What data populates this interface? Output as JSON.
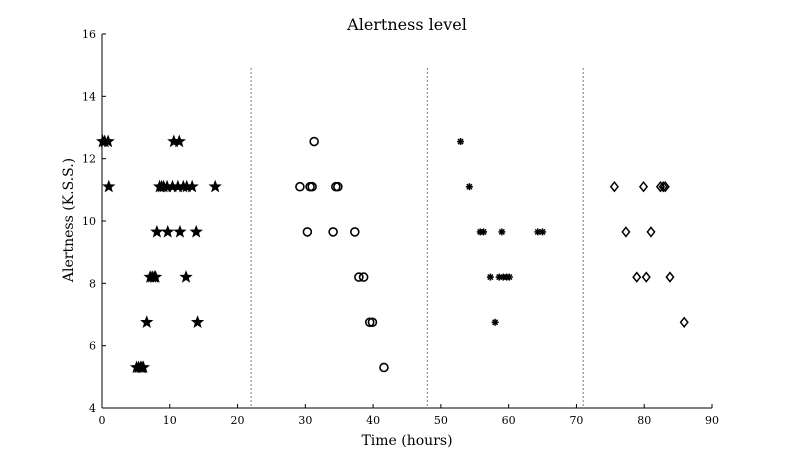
{
  "chart_data": {
    "type": "scatter",
    "title": "Alertness level",
    "xlabel": "Time (hours)",
    "ylabel": "Alertness (K.S.S.)",
    "xlim": [
      0,
      90
    ],
    "ylim": [
      4,
      16
    ],
    "xticks": [
      0,
      10,
      20,
      30,
      40,
      50,
      60,
      70,
      80,
      90
    ],
    "yticks": [
      4,
      6,
      8,
      10,
      12,
      14,
      16
    ],
    "grid": false,
    "vlines": [
      22,
      48,
      71
    ],
    "series": [
      {
        "marker": "star",
        "points": [
          [
            0.1,
            12.55
          ],
          [
            0.4,
            12.55
          ],
          [
            0.9,
            12.55
          ],
          [
            1.0,
            11.1
          ],
          [
            5.1,
            5.3
          ],
          [
            5.4,
            5.3
          ],
          [
            5.7,
            5.3
          ],
          [
            5.9,
            5.3
          ],
          [
            6.1,
            5.3
          ],
          [
            6.6,
            6.75
          ],
          [
            7.1,
            8.2
          ],
          [
            7.4,
            8.2
          ],
          [
            7.7,
            8.2
          ],
          [
            7.9,
            8.2
          ],
          [
            8.1,
            9.65
          ],
          [
            8.5,
            11.1
          ],
          [
            8.8,
            11.1
          ],
          [
            9.1,
            11.1
          ],
          [
            9.6,
            11.1
          ],
          [
            9.7,
            9.65
          ],
          [
            10.4,
            11.1
          ],
          [
            10.6,
            12.55
          ],
          [
            11.2,
            11.1
          ],
          [
            11.4,
            12.55
          ],
          [
            11.5,
            9.65
          ],
          [
            12.0,
            11.1
          ],
          [
            12.4,
            8.2
          ],
          [
            12.5,
            11.1
          ],
          [
            13.3,
            11.1
          ],
          [
            13.9,
            9.65
          ],
          [
            14.1,
            6.75
          ],
          [
            16.7,
            11.1
          ]
        ]
      },
      {
        "marker": "circle",
        "points": [
          [
            29.2,
            11.1
          ],
          [
            30.3,
            9.65
          ],
          [
            30.7,
            11.1
          ],
          [
            31.0,
            11.1
          ],
          [
            31.3,
            12.55
          ],
          [
            34.1,
            9.65
          ],
          [
            34.5,
            11.1
          ],
          [
            34.8,
            11.1
          ],
          [
            37.3,
            9.65
          ],
          [
            37.9,
            8.2
          ],
          [
            38.6,
            8.2
          ],
          [
            39.5,
            6.75
          ],
          [
            39.9,
            6.75
          ],
          [
            41.6,
            5.3
          ]
        ]
      },
      {
        "marker": "asterisk",
        "points": [
          [
            52.9,
            12.55
          ],
          [
            54.2,
            11.1
          ],
          [
            55.8,
            9.65
          ],
          [
            56.3,
            9.65
          ],
          [
            57.3,
            8.2
          ],
          [
            58.0,
            6.75
          ],
          [
            58.6,
            8.2
          ],
          [
            59.0,
            9.65
          ],
          [
            59.2,
            8.2
          ],
          [
            59.7,
            8.2
          ],
          [
            60.1,
            8.2
          ],
          [
            64.3,
            9.65
          ],
          [
            65.0,
            9.65
          ]
        ]
      },
      {
        "marker": "diamond",
        "points": [
          [
            75.6,
            11.1
          ],
          [
            77.3,
            9.65
          ],
          [
            78.9,
            8.2
          ],
          [
            79.9,
            11.1
          ],
          [
            80.3,
            8.2
          ],
          [
            81.0,
            9.65
          ],
          [
            82.4,
            11.1
          ],
          [
            82.8,
            11.1
          ],
          [
            83.1,
            11.1
          ],
          [
            83.8,
            8.2
          ],
          [
            85.9,
            6.75
          ]
        ]
      }
    ]
  }
}
